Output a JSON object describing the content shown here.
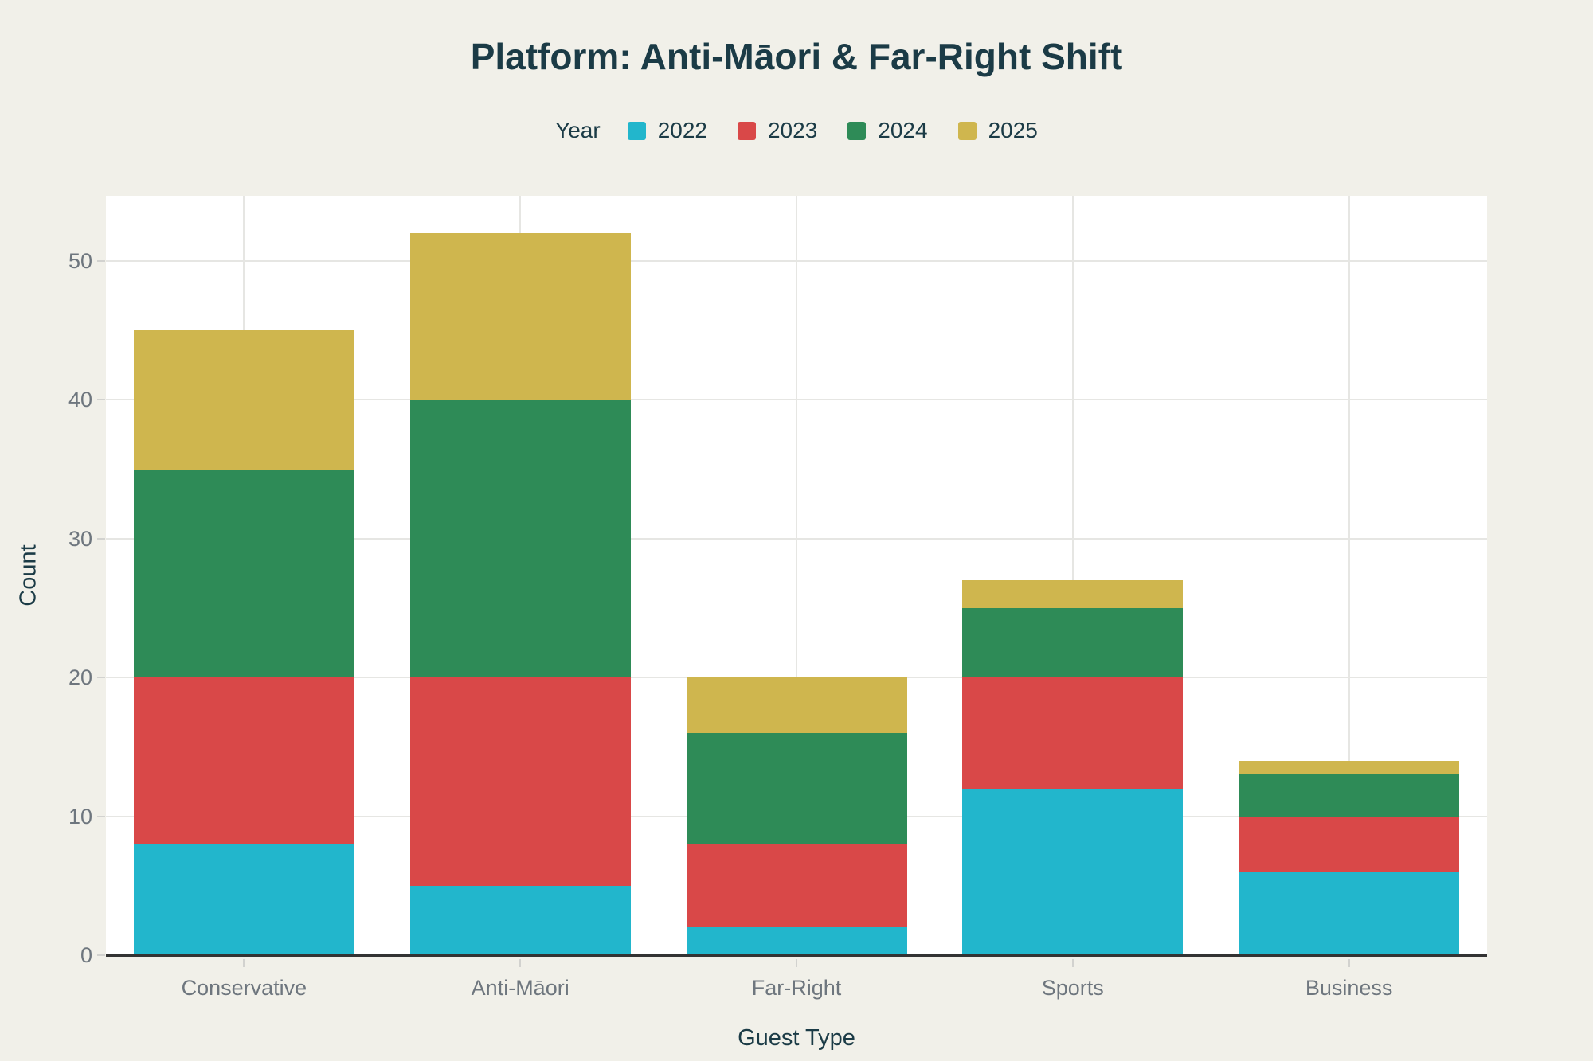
{
  "chart_data": {
    "type": "bar",
    "stacked": true,
    "title": "Platform: Anti-Māori & Far-Right Shift",
    "legend_title": "Year",
    "legend_position": "top-center",
    "xlabel": "Guest Type",
    "ylabel": "Count",
    "categories": [
      "Conservative",
      "Anti-Māori",
      "Far-Right",
      "Sports",
      "Business"
    ],
    "series": [
      {
        "name": "2022",
        "color": "#22b6cc",
        "values": [
          8,
          5,
          2,
          12,
          6
        ]
      },
      {
        "name": "2023",
        "color": "#d94848",
        "values": [
          12,
          15,
          6,
          8,
          4
        ]
      },
      {
        "name": "2024",
        "color": "#2e8b57",
        "values": [
          15,
          20,
          8,
          5,
          3
        ]
      },
      {
        "name": "2025",
        "color": "#cfb64e",
        "values": [
          10,
          12,
          4,
          2,
          1
        ]
      }
    ],
    "yticks": [
      0,
      10,
      20,
      30,
      40,
      50
    ],
    "ylim": [
      0,
      54.7
    ],
    "grid": true,
    "colors": {
      "background": "#f1f0e9",
      "plot_background": "#ffffff",
      "gridline": "#e6e6e3",
      "axis_line": "#333333",
      "tick_text": "#6e767e",
      "text": "#1b3b46"
    }
  }
}
